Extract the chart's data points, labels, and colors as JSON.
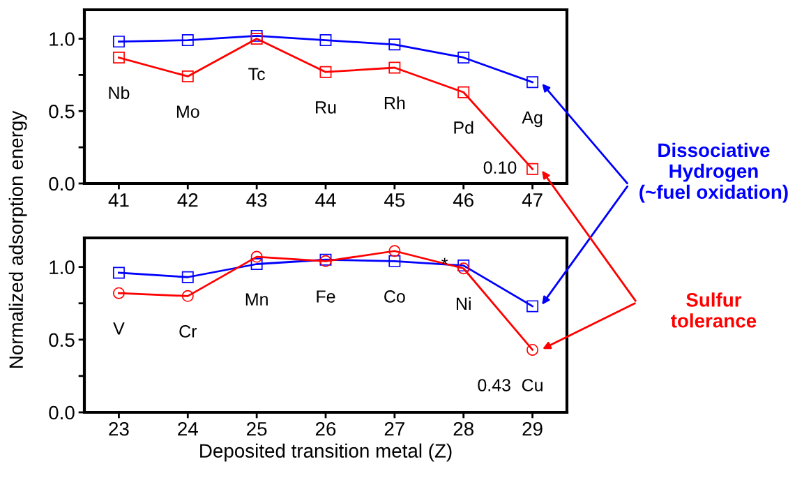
{
  "chart_data": [
    {
      "type": "line",
      "x": [
        41,
        42,
        43,
        44,
        45,
        46,
        47
      ],
      "xlim": [
        40.5,
        47.5
      ],
      "xticks": [
        41,
        42,
        43,
        44,
        45,
        46,
        47
      ],
      "ylim": [
        0,
        1.2
      ],
      "yticks": [
        {
          "value": 0,
          "label": "0.0"
        },
        {
          "value": 0.25,
          "label": null
        },
        0.5,
        {
          "value": 0.75,
          "label": null
        },
        {
          "value": 1,
          "label": "1.0"
        }
      ],
      "marker": "square",
      "line_style": "solid",
      "grid": false,
      "legend": false,
      "series": [
        {
          "color": "#0000ff",
          "values": [
            0.98,
            0.99,
            1.02,
            0.99,
            0.96,
            0.87,
            0.7
          ]
        },
        {
          "color": "#ff0000",
          "values": [
            0.87,
            0.74,
            1.0,
            0.77,
            0.8,
            0.63,
            0.1
          ]
        }
      ],
      "annotations": [
        {
          "text": "Nb",
          "x": 41,
          "y": 0.87
        },
        {
          "text": "Mo",
          "x": 42,
          "y": 0.74
        },
        {
          "text": "Tc",
          "x": 43,
          "y": 1.0
        },
        {
          "text": "Ru",
          "x": 44,
          "y": 0.77
        },
        {
          "text": "Rh",
          "x": 45,
          "y": 0.8
        },
        {
          "text": "Pd",
          "x": 46,
          "y": 0.63
        },
        {
          "text": "Ag",
          "x": 47,
          "y": 0.7
        },
        {
          "text": "0.10",
          "x": 47,
          "y": 0.1
        },
        "Dissociative\nHydrogen\n(~fuel oxidation)",
        "Sulfur\ntolerance"
      ]
    },
    {
      "type": "line",
      "x": [
        23,
        24,
        25,
        26,
        27,
        28,
        29
      ],
      "xlim": [
        22.5,
        29.5
      ],
      "xticks": [
        23,
        24,
        25,
        26,
        27,
        28,
        29
      ],
      "ylim": [
        0,
        1.2
      ],
      "yticks": [
        {
          "value": 0,
          "label": "0.0"
        },
        {
          "value": 0.25,
          "label": null
        },
        0.5,
        {
          "value": 0.75,
          "label": null
        },
        {
          "value": 1,
          "label": "1.0"
        }
      ],
      "grid": false,
      "legend": false,
      "line_style": "solid",
      "xlabel": "Deposited transition metal (Z)",
      "ylabel": "Normalized adsorption energy",
      "series": [
        {
          "color": "#0000ff",
          "marker": "square",
          "values": [
            0.96,
            0.93,
            1.02,
            1.05,
            1.04,
            1.01,
            0.73
          ]
        },
        {
          "color": "#ff0000",
          "marker": "circle",
          "values": [
            0.82,
            0.8,
            1.07,
            1.04,
            1.11,
            0.99,
            0.43
          ]
        }
      ],
      "annotations": [
        {
          "text": "V",
          "x": 23,
          "y": 0.82
        },
        {
          "text": "Cr",
          "x": 24,
          "y": 0.8
        },
        {
          "text": "Mn",
          "x": 25,
          "y": 1.02
        },
        {
          "text": "Fe",
          "x": 26,
          "y": 1.04
        },
        {
          "text": "Co",
          "x": 27,
          "y": 1.04
        },
        {
          "text": "Ni",
          "x": 28,
          "y": 0.99
        },
        {
          "text": "*",
          "x": 28,
          "y": 1.01
        },
        {
          "text": "Cu",
          "x": 29,
          "y": 0.43
        },
        {
          "text": "0.43",
          "x": 29,
          "y": 0.43
        }
      ]
    }
  ]
}
